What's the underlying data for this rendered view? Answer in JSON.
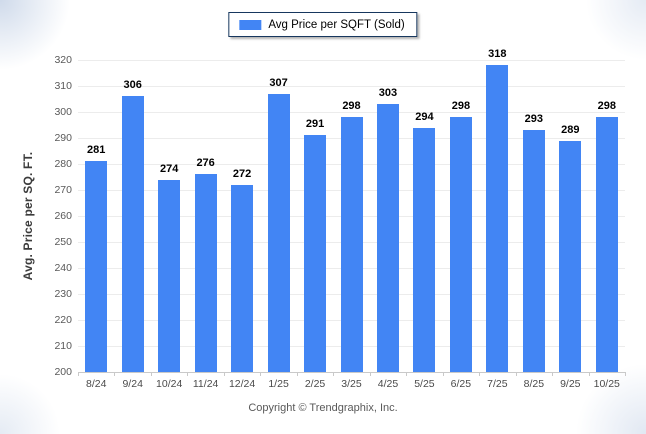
{
  "chart_data": {
    "type": "bar",
    "title": "",
    "legend": {
      "position": "top-center",
      "label": "Avg Price per SQFT (Sold)"
    },
    "categories": [
      "8/24",
      "9/24",
      "10/24",
      "11/24",
      "12/24",
      "1/25",
      "2/25",
      "3/25",
      "4/25",
      "5/25",
      "6/25",
      "7/25",
      "8/25",
      "9/25",
      "10/25"
    ],
    "values": [
      281,
      306,
      274,
      276,
      272,
      307,
      291,
      298,
      303,
      294,
      298,
      318,
      293,
      289,
      298
    ],
    "xlabel": "",
    "ylabel": "Avg. Price per SQ. FT.",
    "ylim": [
      200,
      320
    ],
    "ytick_step": 10,
    "grid": true,
    "bar_color": "#4285f4",
    "value_labels_shown": true
  },
  "footer": {
    "copyright": "Copyright © Trendgraphix, Inc."
  },
  "colors": {
    "bar": "#4285f4",
    "legend_border": "#17375e",
    "gridline": "#ececec",
    "axis_line": "#c9c9c9",
    "tick_label": "#595959",
    "value_label": "#000000"
  }
}
